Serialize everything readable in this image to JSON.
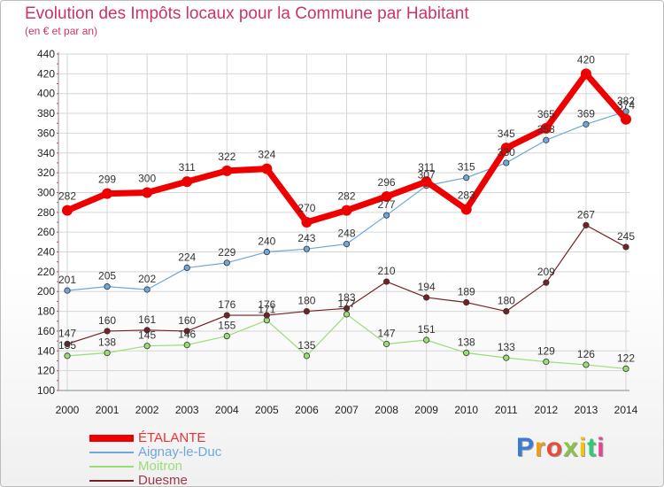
{
  "title": "Evolution des Impôts locaux pour la Commune par Habitant",
  "subtitle": "(en € et par an)",
  "brand": {
    "text": "Proxiti",
    "colors": [
      "#3a7bd5",
      "#f39c12",
      "#e74c3c",
      "#8bc34a",
      "#f1c40f",
      "#2ecc71",
      "#e84393"
    ]
  },
  "chart_data": {
    "type": "line",
    "x": [
      "2000",
      "2001",
      "2002",
      "2003",
      "2004",
      "2005",
      "2006",
      "2007",
      "2008",
      "2009",
      "2010",
      "2011",
      "2012",
      "2013",
      "2014"
    ],
    "ylim": [
      100,
      440
    ],
    "yticks": [
      100,
      120,
      140,
      160,
      180,
      200,
      220,
      240,
      260,
      280,
      300,
      320,
      340,
      360,
      380,
      400,
      420,
      440
    ],
    "grid": true,
    "legend_position": "bottom-left",
    "series": [
      {
        "name": "ÉTALANTE",
        "color": "#ee0000",
        "values": [
          282,
          299,
          300,
          311,
          322,
          324,
          270,
          282,
          296,
          311,
          283,
          345,
          365,
          420,
          374
        ]
      },
      {
        "name": "Aignay-le-Duc",
        "color": "#6fa7d8",
        "values": [
          201,
          205,
          202,
          224,
          229,
          240,
          243,
          248,
          277,
          307,
          315,
          330,
          353,
          369,
          382
        ]
      },
      {
        "name": "Moitron",
        "color": "#99dd77",
        "values": [
          135,
          138,
          145,
          146,
          155,
          171,
          135,
          177,
          147,
          151,
          138,
          133,
          129,
          126,
          122
        ]
      },
      {
        "name": "Duesme",
        "color": "#772222",
        "values": [
          147,
          160,
          161,
          160,
          176,
          176,
          180,
          183,
          210,
          194,
          189,
          180,
          209,
          267,
          245
        ]
      }
    ]
  }
}
